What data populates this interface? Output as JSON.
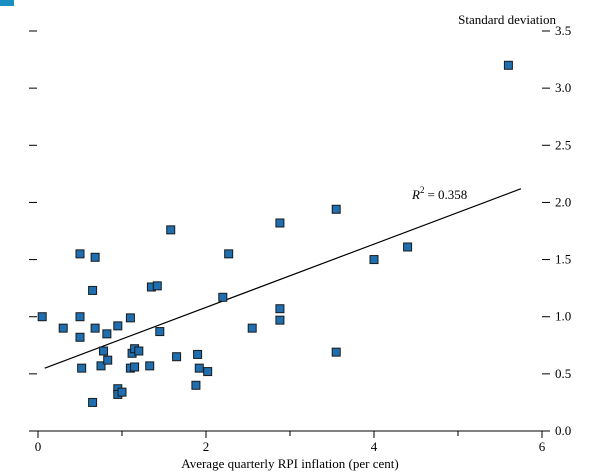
{
  "chart_data": {
    "type": "scatter",
    "title": "",
    "xlabel": "Average quarterly RPI inflation (per cent)",
    "ylabel": "Standard deviation",
    "xlim": [
      0,
      6
    ],
    "ylim": [
      0,
      3.5
    ],
    "x_ticks": [
      0,
      2,
      4,
      6
    ],
    "x_tick_labels": [
      "0",
      "2",
      "4",
      "6"
    ],
    "x_minor_ticks": [
      1,
      3,
      5
    ],
    "y_ticks": [
      0,
      0.5,
      1,
      1.5,
      2,
      2.5,
      3,
      3.5
    ],
    "y_tick_labels": [
      "0.0",
      "0.5",
      "1.0",
      "1.5",
      "2.0",
      "2.5",
      "3.0",
      "3.5"
    ],
    "grid": false,
    "marker_color": "#1f6fb0",
    "marker_edge_color": "#1a1a1a",
    "points": [
      [
        0.05,
        1.0
      ],
      [
        0.3,
        0.9
      ],
      [
        0.5,
        1.55
      ],
      [
        0.5,
        1.0
      ],
      [
        0.5,
        0.82
      ],
      [
        0.52,
        0.55
      ],
      [
        0.65,
        1.23
      ],
      [
        0.68,
        1.52
      ],
      [
        0.68,
        0.9
      ],
      [
        0.65,
        0.25
      ],
      [
        0.75,
        0.57
      ],
      [
        0.78,
        0.7
      ],
      [
        0.82,
        0.85
      ],
      [
        0.83,
        0.62
      ],
      [
        0.95,
        0.92
      ],
      [
        0.95,
        0.37
      ],
      [
        0.95,
        0.32
      ],
      [
        1.0,
        0.34
      ],
      [
        1.1,
        0.99
      ],
      [
        1.1,
        0.55
      ],
      [
        1.12,
        0.68
      ],
      [
        1.15,
        0.72
      ],
      [
        1.15,
        0.56
      ],
      [
        1.2,
        0.7
      ],
      [
        1.33,
        0.57
      ],
      [
        1.35,
        1.26
      ],
      [
        1.42,
        1.27
      ],
      [
        1.45,
        0.87
      ],
      [
        1.58,
        1.76
      ],
      [
        1.65,
        0.65
      ],
      [
        1.88,
        0.4
      ],
      [
        1.9,
        0.67
      ],
      [
        1.92,
        0.55
      ],
      [
        2.02,
        0.52
      ],
      [
        2.2,
        1.17
      ],
      [
        2.27,
        1.55
      ],
      [
        2.55,
        0.9
      ],
      [
        2.88,
        1.82
      ],
      [
        2.88,
        1.07
      ],
      [
        2.88,
        0.97
      ],
      [
        3.55,
        1.94
      ],
      [
        3.55,
        0.69
      ],
      [
        4.0,
        1.5
      ],
      [
        4.4,
        1.61
      ],
      [
        5.6,
        3.2
      ]
    ],
    "trend_line": {
      "x": [
        0.08,
        5.75
      ],
      "y": [
        0.55,
        2.12
      ]
    },
    "annotation": {
      "base": "R",
      "superscript": "2",
      "value": "= 0.358"
    }
  }
}
